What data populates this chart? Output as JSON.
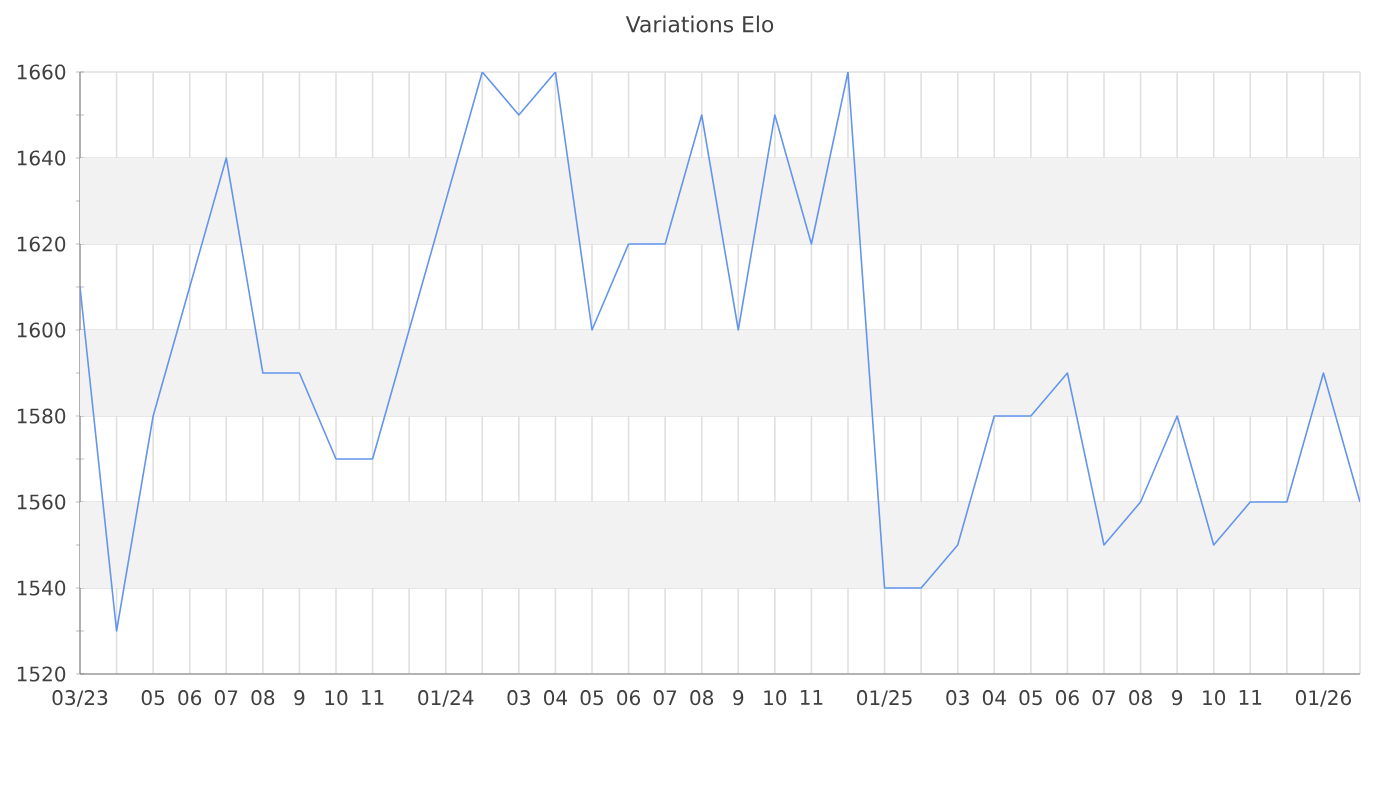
{
  "chart_data": {
    "type": "line",
    "title": "Variations Elo",
    "categories": [
      "03/23",
      null,
      "05",
      "06",
      "07",
      "08",
      "9",
      "10",
      "11",
      null,
      "01/24",
      null,
      "03",
      "04",
      "05",
      "06",
      "07",
      "08",
      "9",
      "10",
      "11",
      null,
      "01/25",
      null,
      "03",
      "04",
      "05",
      "06",
      "07",
      "08",
      "9",
      "10",
      "11",
      null,
      "01/26",
      null
    ],
    "values": [
      1610,
      1530,
      1580,
      1610,
      1640,
      1590,
      1590,
      1570,
      1570,
      1600,
      1630,
      1660,
      1650,
      1660,
      1600,
      1620,
      1620,
      1650,
      1600,
      1650,
      1620,
      1660,
      1540,
      1540,
      1550,
      1580,
      1580,
      1590,
      1550,
      1560,
      1580,
      1550,
      1560,
      1560,
      1590,
      1560
    ],
    "color": "#6495ed",
    "ylim": [
      1520,
      1660
    ],
    "yticks": [
      1520,
      1540,
      1560,
      1580,
      1600,
      1620,
      1640,
      1660
    ],
    "bands": [
      {
        "axis": "y",
        "from": 1540,
        "to": 1560,
        "color": "#f2f2f2"
      },
      {
        "axis": "y",
        "from": 1580,
        "to": 1600,
        "color": "#f2f2f2"
      },
      {
        "axis": "y",
        "from": 1620,
        "to": 1640,
        "color": "#f2f2f2"
      }
    ],
    "grid": true,
    "marker": "none",
    "line_style": "solid"
  }
}
